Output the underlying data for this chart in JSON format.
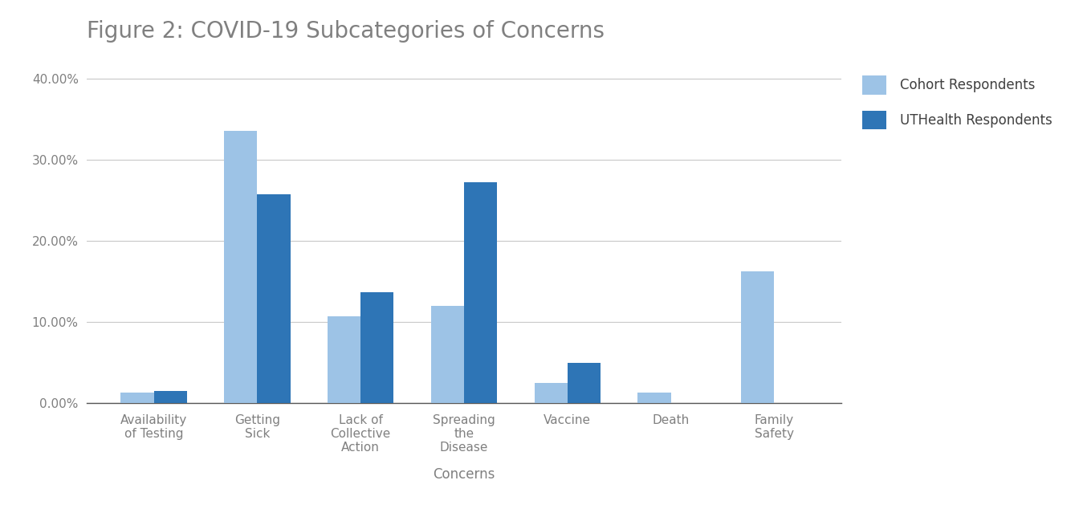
{
  "title": "Figure 2: COVID-19 Subcategories of Concerns",
  "categories": [
    "Availability\nof Testing",
    "Getting\nSick",
    "Lack of\nCollective\nAction",
    "Spreading\nthe\nDisease",
    "Vaccine",
    "Death",
    "Family\nSafety"
  ],
  "cohort_values": [
    0.013,
    0.335,
    0.107,
    0.12,
    0.025,
    0.013,
    0.162
  ],
  "utHealth_values": [
    0.015,
    0.257,
    0.137,
    0.272,
    0.05,
    0.0,
    0.0
  ],
  "cohort_color": "#9DC3E6",
  "utHealth_color": "#2E75B6",
  "legend_labels": [
    "Cohort Respondents",
    "UTHealth Respondents"
  ],
  "xlabel": "Concerns",
  "ylim": [
    0,
    0.42
  ],
  "yticks": [
    0.0,
    0.1,
    0.2,
    0.3,
    0.4
  ],
  "ytick_labels": [
    "0.00%",
    "10.00%",
    "20.00%",
    "30.00%",
    "40.00%"
  ],
  "background_color": "#ffffff",
  "grid_color": "#c8c8c8",
  "title_color": "#808080",
  "axis_label_color": "#808080",
  "tick_color": "#808080",
  "legend_text_color": "#404040",
  "bar_width": 0.32
}
